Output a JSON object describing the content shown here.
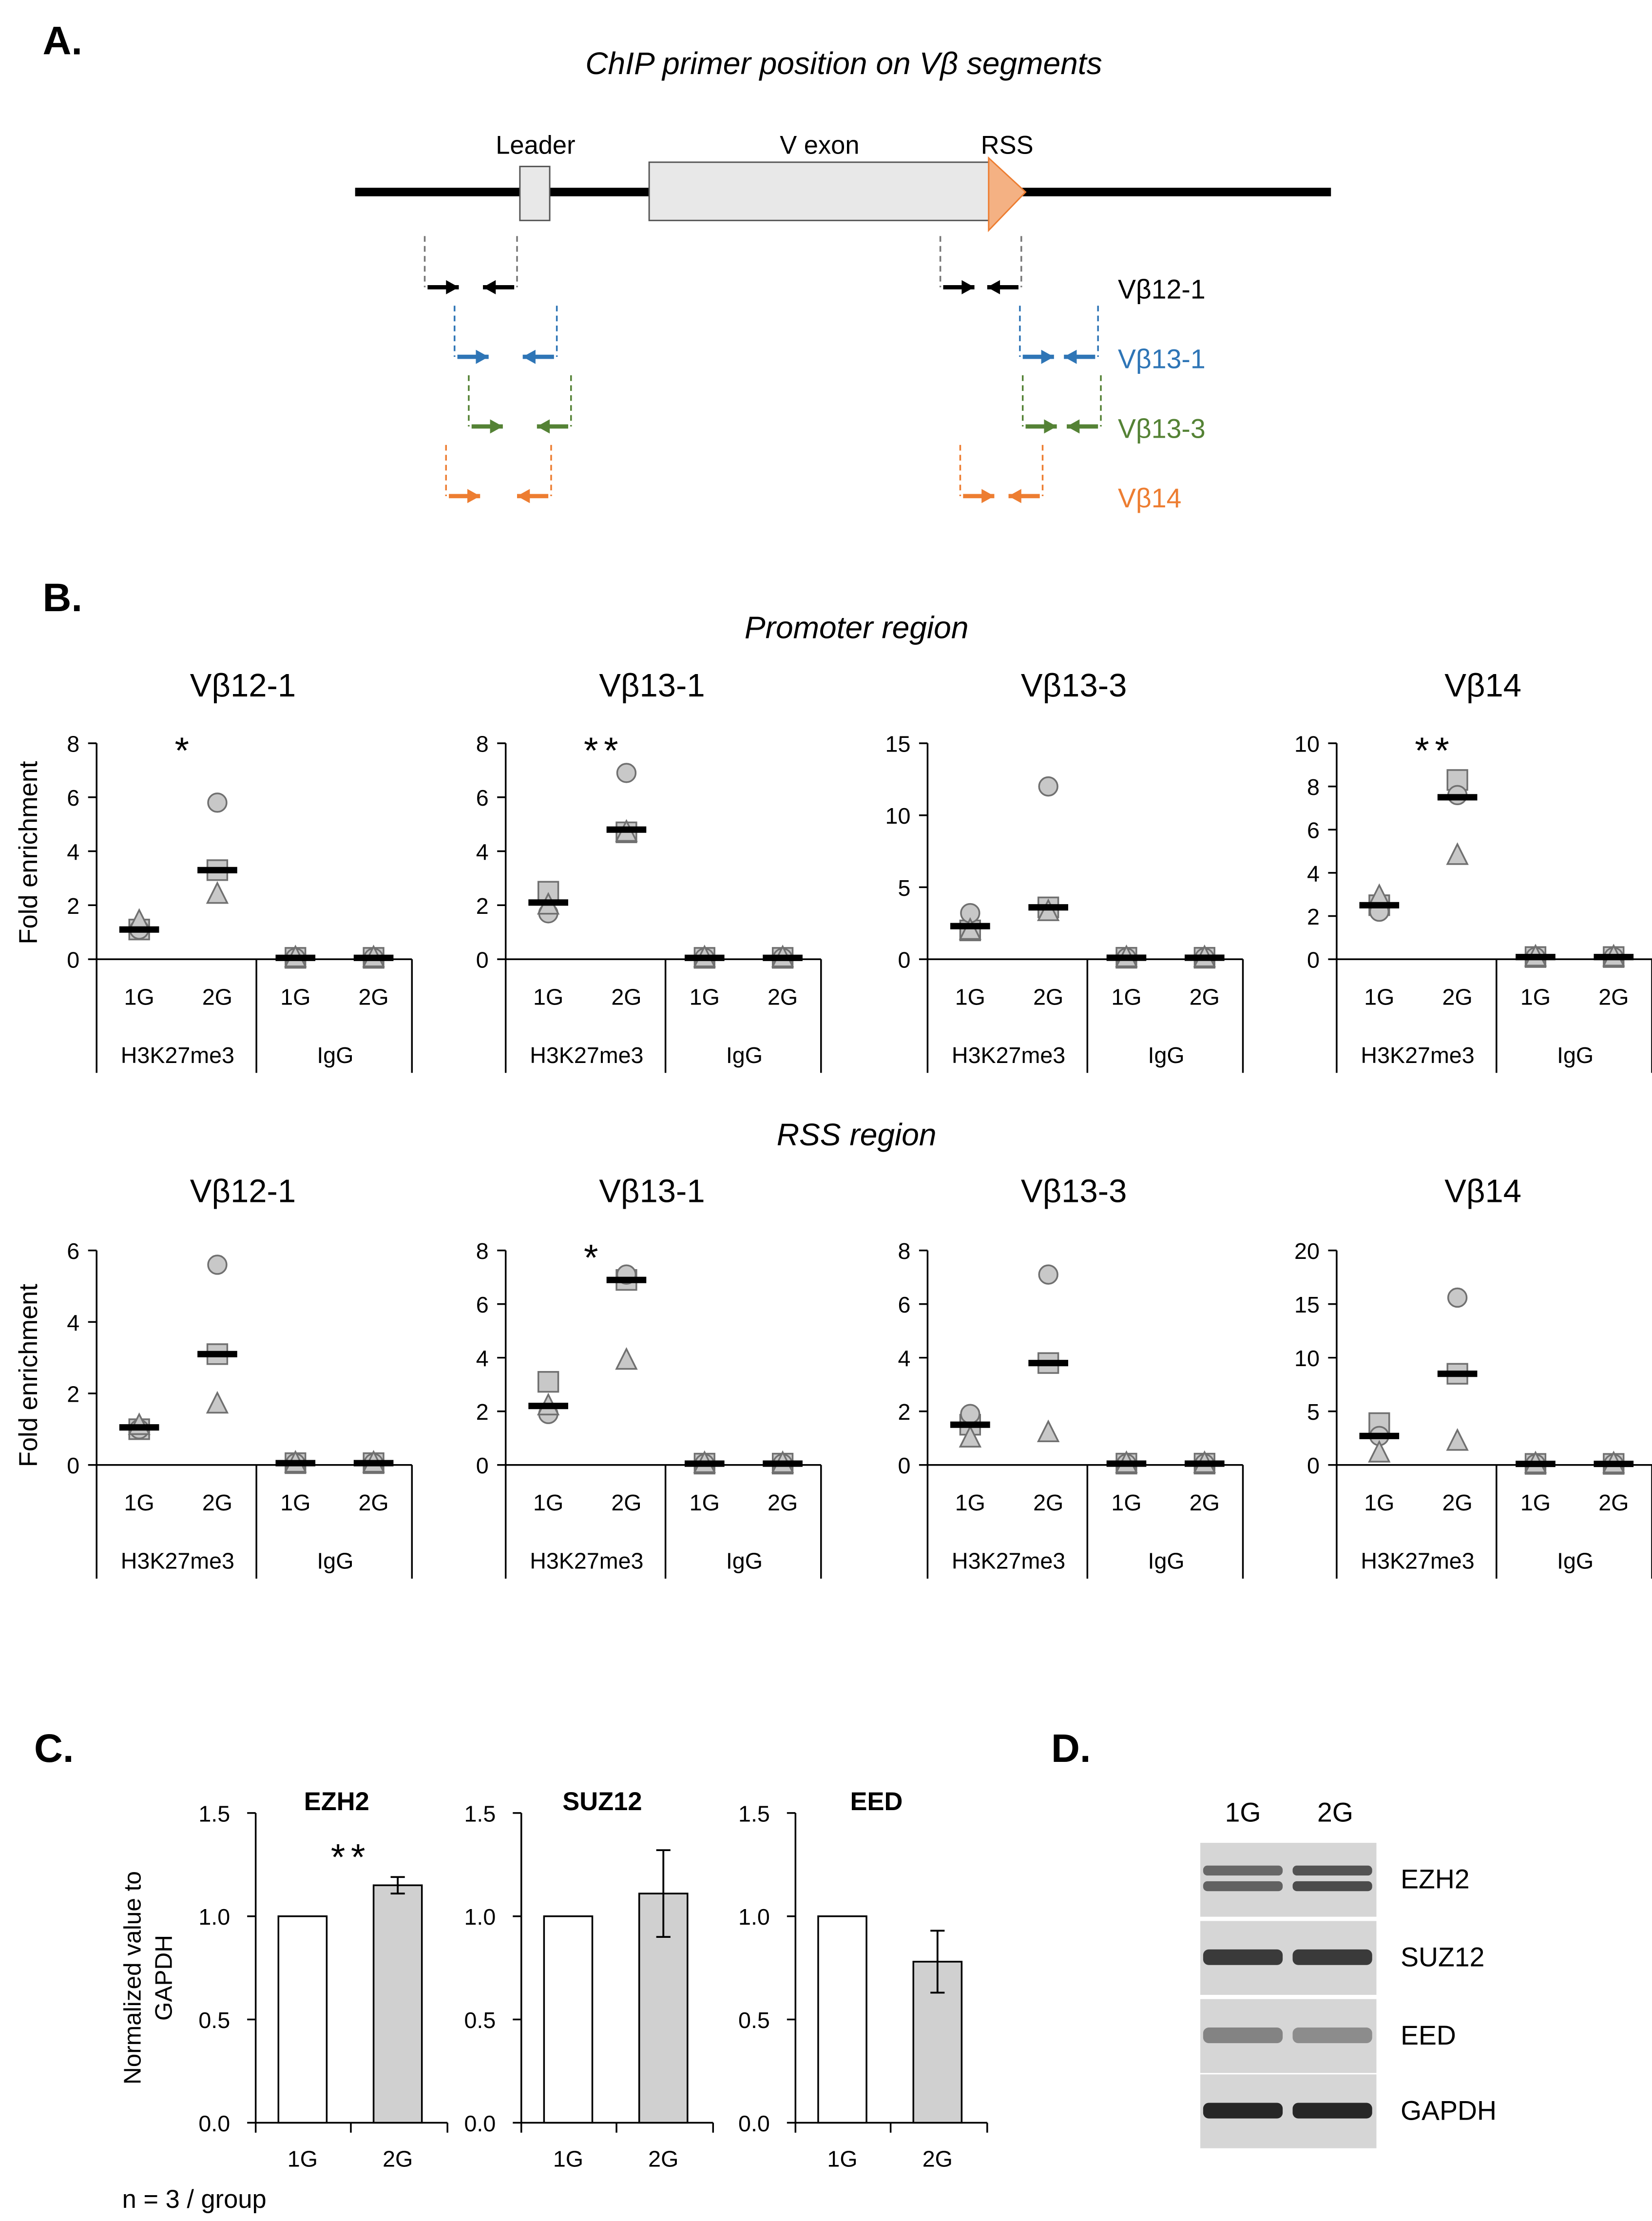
{
  "panel_labels": {
    "a": "A.",
    "b": "B.",
    "c": "C.",
    "d": "D."
  },
  "panel_a": {
    "title": "ChIP primer position on Vβ segments",
    "leader_label": "Leader",
    "vexon_label": "V exon",
    "rss_label": "RSS",
    "segments": [
      {
        "label": "Vβ12-1",
        "color": "#000000"
      },
      {
        "label": "Vβ13-1",
        "color": "#2E75B6"
      },
      {
        "label": "Vβ13-3",
        "color": "#548235"
      },
      {
        "label": "Vβ14",
        "color": "#ED7D31"
      }
    ]
  },
  "panel_b": {
    "promoter_title": "Promoter region",
    "rss_title": "RSS region",
    "ylabel": "Fold enrichment",
    "group_ticks": [
      "1G",
      "2G",
      "1G",
      "2G"
    ],
    "group_labels": [
      "H3K27me3",
      "IgG"
    ]
  },
  "panel_c": {
    "ylabel": "Normalized value to GAPDH",
    "footnote": "n = 3 / group"
  },
  "panel_d": {
    "lane_labels": [
      "1G",
      "2G"
    ],
    "bands": [
      "EZH2",
      "SUZ12",
      "EED",
      "GAPDH"
    ]
  },
  "chart_data": [
    {
      "id": "prom-vb12-1",
      "type": "scatter",
      "title": "Vβ12-1",
      "section": "Promoter region",
      "ylabel": "Fold enrichment",
      "ylim": [
        0,
        8
      ],
      "yticks": [
        "0",
        "2",
        "4",
        "6",
        "8"
      ],
      "significance": "*",
      "sig_group": 1,
      "groups": [
        {
          "category": "1G",
          "antibody": "H3K27me3",
          "circle": 1.1,
          "square": 1.1,
          "triangle": 1.4,
          "mean": 1.1
        },
        {
          "category": "2G",
          "antibody": "H3K27me3",
          "circle": 5.8,
          "square": 3.3,
          "triangle": 2.4,
          "mean": 3.3
        },
        {
          "category": "1G",
          "antibody": "IgG",
          "circle": 0.05,
          "square": 0.05,
          "triangle": 0.05,
          "mean": 0.05
        },
        {
          "category": "2G",
          "antibody": "IgG",
          "circle": 0.05,
          "square": 0.05,
          "triangle": 0.05,
          "mean": 0.05
        }
      ]
    },
    {
      "id": "prom-vb13-1",
      "type": "scatter",
      "title": "Vβ13-1",
      "section": "Promoter region",
      "ylabel": "Fold enrichment",
      "ylim": [
        0,
        8
      ],
      "yticks": [
        "0",
        "2",
        "4",
        "6",
        "8"
      ],
      "significance": "**",
      "sig_group": 1,
      "groups": [
        {
          "category": "1G",
          "antibody": "H3K27me3",
          "circle": 1.7,
          "square": 2.5,
          "triangle": 2.0,
          "mean": 2.1
        },
        {
          "category": "2G",
          "antibody": "H3K27me3",
          "circle": 6.9,
          "square": 4.7,
          "triangle": 4.7,
          "mean": 4.8
        },
        {
          "category": "1G",
          "antibody": "IgG",
          "circle": 0.05,
          "square": 0.05,
          "triangle": 0.05,
          "mean": 0.05
        },
        {
          "category": "2G",
          "antibody": "IgG",
          "circle": 0.05,
          "square": 0.05,
          "triangle": 0.05,
          "mean": 0.05
        }
      ]
    },
    {
      "id": "prom-vb13-3",
      "type": "scatter",
      "title": "Vβ13-3",
      "section": "Promoter region",
      "ylabel": "Fold enrichment",
      "ylim": [
        0,
        15
      ],
      "yticks": [
        "0",
        "5",
        "10",
        "15"
      ],
      "significance": "",
      "sig_group": 1,
      "groups": [
        {
          "category": "1G",
          "antibody": "H3K27me3",
          "circle": 3.2,
          "square": 2.0,
          "triangle": 2.0,
          "mean": 2.3
        },
        {
          "category": "2G",
          "antibody": "H3K27me3",
          "circle": 12.0,
          "square": 3.6,
          "triangle": 3.3,
          "mean": 3.6
        },
        {
          "category": "1G",
          "antibody": "IgG",
          "circle": 0.1,
          "square": 0.1,
          "triangle": 0.1,
          "mean": 0.1
        },
        {
          "category": "2G",
          "antibody": "IgG",
          "circle": 0.1,
          "square": 0.1,
          "triangle": 0.1,
          "mean": 0.1
        }
      ]
    },
    {
      "id": "prom-vb14",
      "type": "scatter",
      "title": "Vβ14",
      "section": "Promoter region",
      "ylabel": "Fold enrichment",
      "ylim": [
        0,
        10
      ],
      "yticks": [
        "0",
        "2",
        "4",
        "6",
        "8",
        "10"
      ],
      "significance": "**",
      "sig_group": 1,
      "groups": [
        {
          "category": "1G",
          "antibody": "H3K27me3",
          "circle": 2.2,
          "square": 2.5,
          "triangle": 2.9,
          "mean": 2.5
        },
        {
          "category": "2G",
          "antibody": "H3K27me3",
          "circle": 7.6,
          "square": 8.3,
          "triangle": 4.8,
          "mean": 7.5
        },
        {
          "category": "1G",
          "antibody": "IgG",
          "circle": 0.1,
          "square": 0.1,
          "triangle": 0.1,
          "mean": 0.1
        },
        {
          "category": "2G",
          "antibody": "IgG",
          "circle": 0.1,
          "square": 0.1,
          "triangle": 0.1,
          "mean": 0.1
        }
      ]
    },
    {
      "id": "rss-vb12-1",
      "type": "scatter",
      "title": "Vβ12-1",
      "section": "RSS region",
      "ylabel": "Fold enrichment",
      "ylim": [
        0,
        6
      ],
      "yticks": [
        "0",
        "2",
        "4",
        "6"
      ],
      "significance": "",
      "sig_group": 1,
      "groups": [
        {
          "category": "1G",
          "antibody": "H3K27me3",
          "circle": 1.0,
          "square": 1.0,
          "triangle": 1.1,
          "mean": 1.05
        },
        {
          "category": "2G",
          "antibody": "H3K27me3",
          "circle": 5.6,
          "square": 3.1,
          "triangle": 1.7,
          "mean": 3.1
        },
        {
          "category": "1G",
          "antibody": "IgG",
          "circle": 0.05,
          "square": 0.05,
          "triangle": 0.05,
          "mean": 0.05
        },
        {
          "category": "2G",
          "antibody": "IgG",
          "circle": 0.05,
          "square": 0.05,
          "triangle": 0.05,
          "mean": 0.05
        }
      ]
    },
    {
      "id": "rss-vb13-1",
      "type": "scatter",
      "title": "Vβ13-1",
      "section": "RSS region",
      "ylabel": "Fold enrichment",
      "ylim": [
        0,
        8
      ],
      "yticks": [
        "0",
        "2",
        "4",
        "6",
        "8"
      ],
      "significance": "*",
      "sig_group": 1,
      "groups": [
        {
          "category": "1G",
          "antibody": "H3K27me3",
          "circle": 1.9,
          "square": 3.1,
          "triangle": 2.2,
          "mean": 2.2
        },
        {
          "category": "2G",
          "antibody": "H3K27me3",
          "circle": 7.1,
          "square": 6.9,
          "triangle": 3.9,
          "mean": 6.9
        },
        {
          "category": "1G",
          "antibody": "IgG",
          "circle": 0.05,
          "square": 0.05,
          "triangle": 0.05,
          "mean": 0.05
        },
        {
          "category": "2G",
          "antibody": "IgG",
          "circle": 0.05,
          "square": 0.05,
          "triangle": 0.05,
          "mean": 0.05
        }
      ]
    },
    {
      "id": "rss-vb13-3",
      "type": "scatter",
      "title": "Vβ13-3",
      "section": "RSS region",
      "ylabel": "Fold enrichment",
      "ylim": [
        0,
        8
      ],
      "yticks": [
        "0",
        "2",
        "4",
        "6",
        "8"
      ],
      "significance": "",
      "sig_group": 1,
      "groups": [
        {
          "category": "1G",
          "antibody": "H3K27me3",
          "circle": 1.9,
          "square": 1.5,
          "triangle": 1.0,
          "mean": 1.5
        },
        {
          "category": "2G",
          "antibody": "H3K27me3",
          "circle": 7.1,
          "square": 3.8,
          "triangle": 1.2,
          "mean": 3.8
        },
        {
          "category": "1G",
          "antibody": "IgG",
          "circle": 0.05,
          "square": 0.05,
          "triangle": 0.05,
          "mean": 0.05
        },
        {
          "category": "2G",
          "antibody": "IgG",
          "circle": 0.05,
          "square": 0.05,
          "triangle": 0.05,
          "mean": 0.05
        }
      ]
    },
    {
      "id": "rss-vb14",
      "type": "scatter",
      "title": "Vβ14",
      "section": "RSS region",
      "ylabel": "Fold enrichment",
      "ylim": [
        0,
        20
      ],
      "yticks": [
        "0",
        "5",
        "10",
        "15",
        "20"
      ],
      "significance": "",
      "sig_group": 1,
      "groups": [
        {
          "category": "1G",
          "antibody": "H3K27me3",
          "circle": 2.7,
          "square": 3.9,
          "triangle": 1.1,
          "mean": 2.7
        },
        {
          "category": "2G",
          "antibody": "H3K27me3",
          "circle": 15.6,
          "square": 8.5,
          "triangle": 2.2,
          "mean": 8.5
        },
        {
          "category": "1G",
          "antibody": "IgG",
          "circle": 0.1,
          "square": 0.1,
          "triangle": 0.1,
          "mean": 0.1
        },
        {
          "category": "2G",
          "antibody": "IgG",
          "circle": 0.1,
          "square": 0.1,
          "triangle": 0.1,
          "mean": 0.1
        }
      ]
    },
    {
      "id": "ezh2",
      "type": "bar",
      "title": "EZH2",
      "ylabel": "Normalized value to GAPDH",
      "ylim": [
        0,
        1.5
      ],
      "yticks": [
        "0.0",
        "0.5",
        "1.0",
        "1.5"
      ],
      "categories": [
        "1G",
        "2G"
      ],
      "values": [
        1.0,
        1.15
      ],
      "errors": [
        0,
        0.04
      ],
      "significance": "**"
    },
    {
      "id": "suz12",
      "type": "bar",
      "title": "SUZ12",
      "ylabel": "Normalized value to GAPDH",
      "ylim": [
        0,
        1.5
      ],
      "yticks": [
        "0.0",
        "0.5",
        "1.0",
        "1.5"
      ],
      "categories": [
        "1G",
        "2G"
      ],
      "values": [
        1.0,
        1.11
      ],
      "errors": [
        0,
        0.21
      ],
      "significance": ""
    },
    {
      "id": "eed",
      "type": "bar",
      "title": "EED",
      "ylabel": "Normalized value to GAPDH",
      "ylim": [
        0,
        1.5
      ],
      "yticks": [
        "0.0",
        "0.5",
        "1.0",
        "1.5"
      ],
      "categories": [
        "1G",
        "2G"
      ],
      "values": [
        1.0,
        0.78
      ],
      "errors": [
        0,
        0.15
      ],
      "significance": ""
    }
  ]
}
